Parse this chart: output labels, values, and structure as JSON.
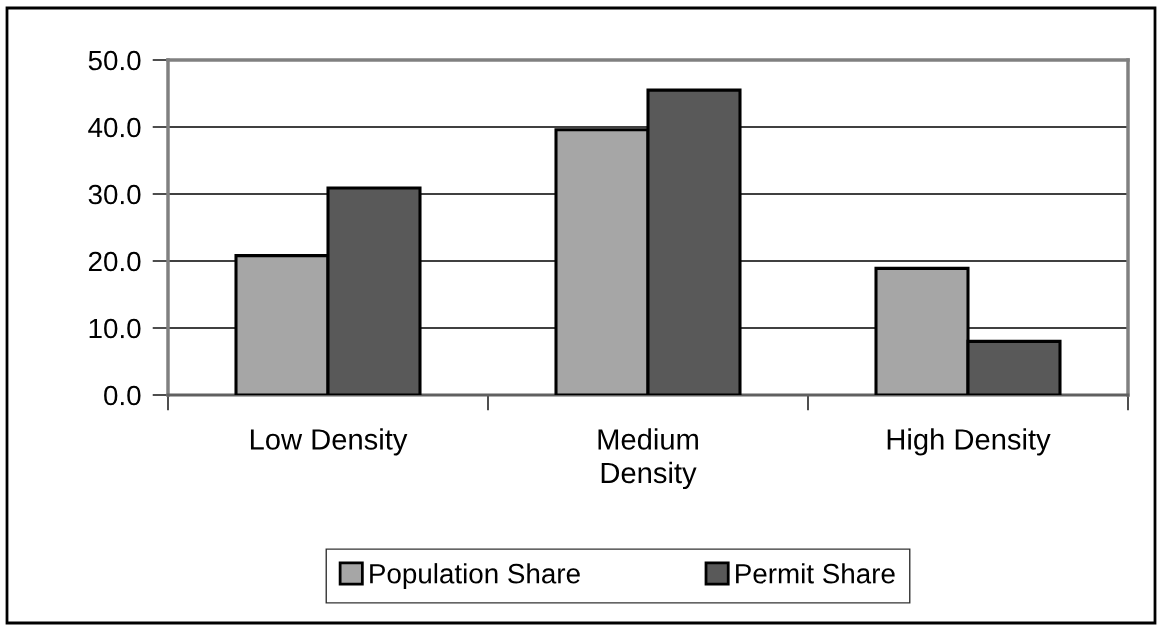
{
  "chart_data": {
    "type": "bar",
    "categories": [
      "Low Density",
      "Medium Density",
      "High Density"
    ],
    "series": [
      {
        "name": "Population Share",
        "color": "#a6a6a6",
        "values": [
          20.8,
          39.6,
          18.9
        ]
      },
      {
        "name": "Permit Share",
        "color": "#595959",
        "values": [
          30.9,
          45.5,
          8.0
        ]
      }
    ],
    "ylim": [
      0,
      50
    ],
    "yticks": [
      {
        "value": 0,
        "label": "0.0"
      },
      {
        "value": 10,
        "label": "10.0"
      },
      {
        "value": 20,
        "label": "20.0"
      },
      {
        "value": 30,
        "label": "30.0"
      },
      {
        "value": 40,
        "label": "40.0"
      },
      {
        "value": 50,
        "label": "50.0"
      }
    ],
    "grid": "y",
    "legend": "bottom"
  }
}
